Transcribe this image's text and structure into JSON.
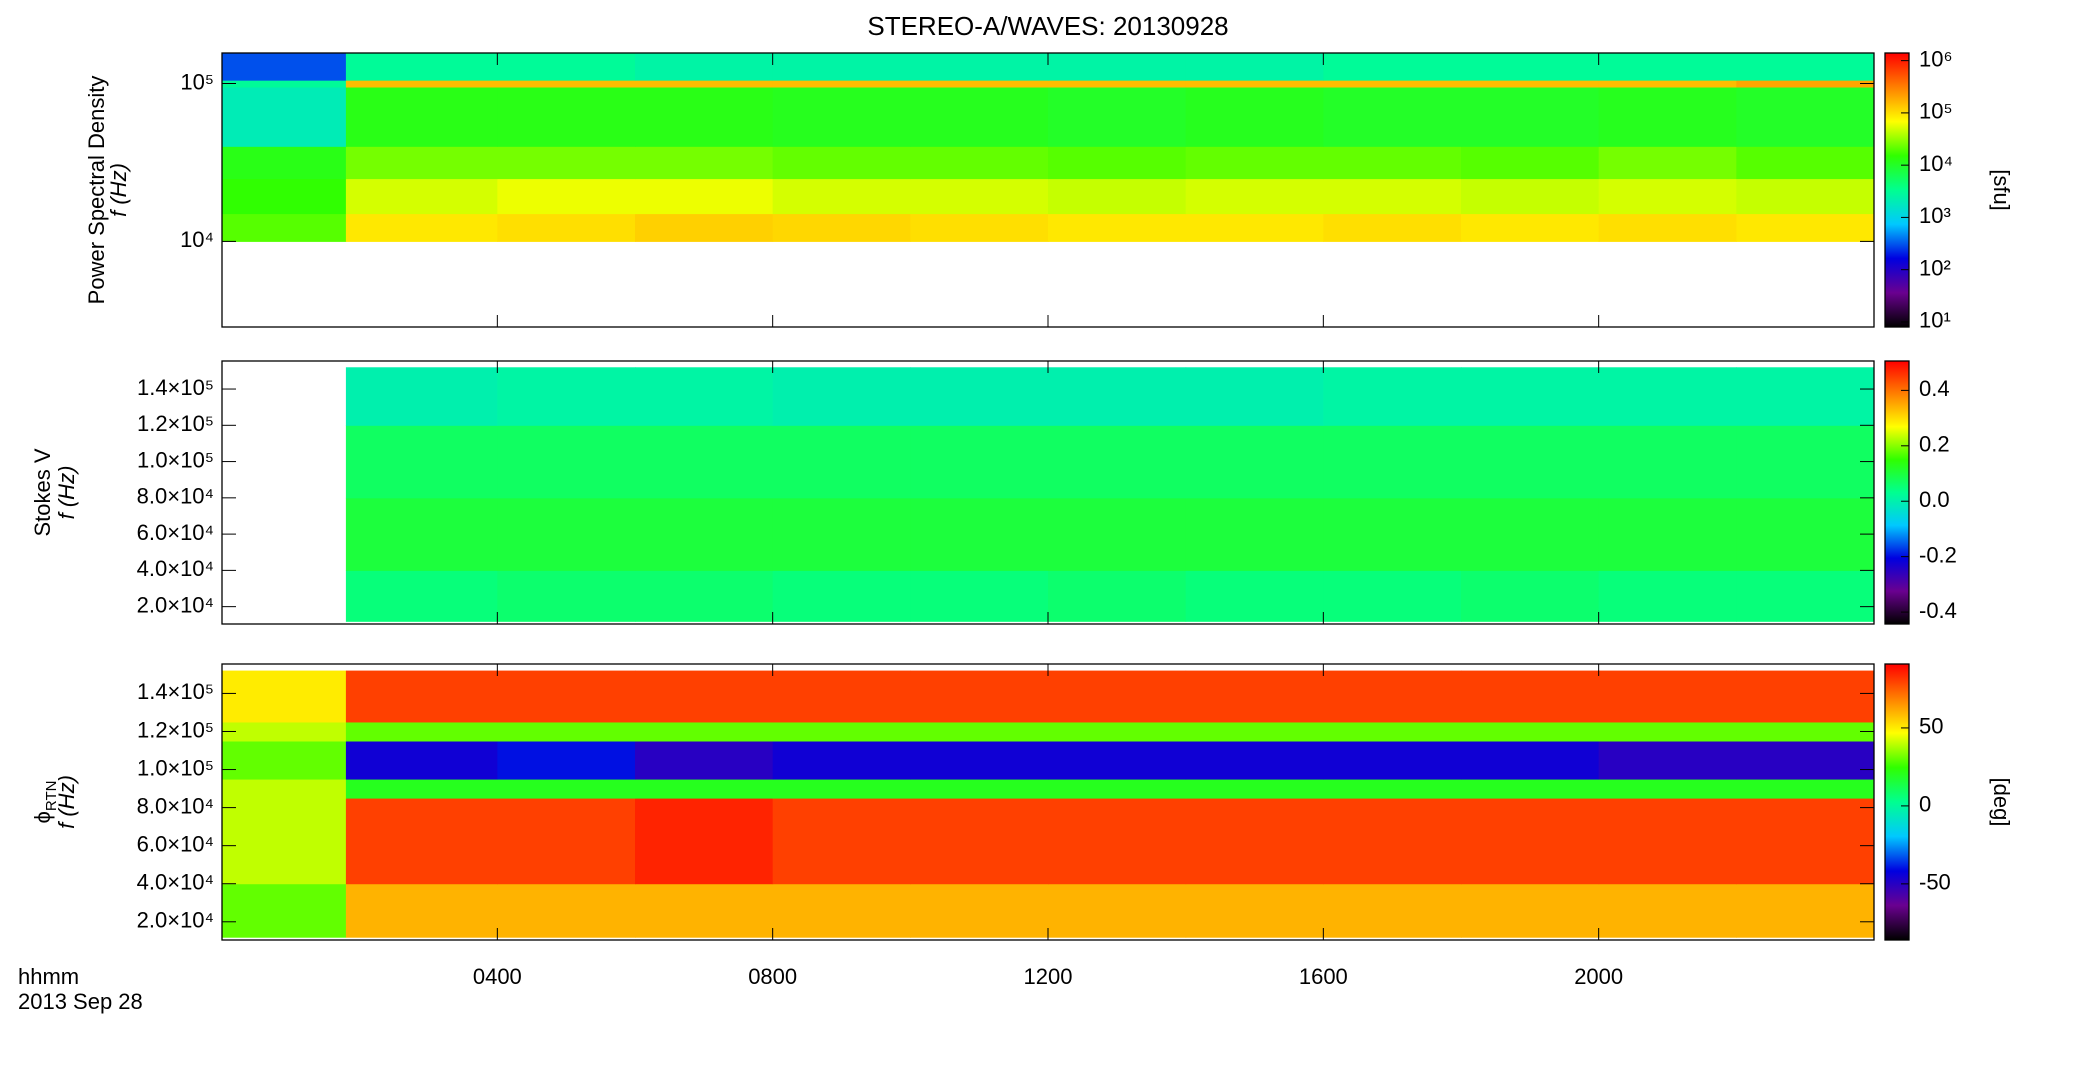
{
  "title": "STEREO-A/WAVES: 20130928",
  "xlabel": "hhmm",
  "date": "2013 Sep 28",
  "chart_data": [
    {
      "type": "heatmap",
      "quantity": "Power Spectral Density",
      "ylabel": "f (Hz)",
      "ylog": true,
      "clog": true,
      "clabel": "[sfu]",
      "xlim": [
        0,
        24
      ],
      "xticks": [
        4,
        8,
        12,
        16,
        20
      ],
      "ylim": [
        2870,
        156000
      ],
      "yticks": [
        {
          "value": 10000,
          "label": "10⁴"
        },
        {
          "value": 100000,
          "label": "10⁵"
        }
      ],
      "clim": [
        8,
        1400000
      ],
      "cticks": [
        {
          "value": 10,
          "label": "10¹"
        },
        {
          "value": 100,
          "label": "10²"
        },
        {
          "value": 1000,
          "label": "10³"
        },
        {
          "value": 10000,
          "label": "10⁴"
        },
        {
          "value": 100000,
          "label": "10⁵"
        },
        {
          "value": 1000000,
          "label": "10⁶"
        }
      ],
      "colormap": [
        "#000000",
        "#6a0090",
        "#0000e0",
        "#00c8ff",
        "#00ff90",
        "#30ff00",
        "#ffff00",
        "#ff8000",
        "#ff0000"
      ],
      "x_edges": [
        0,
        1.8,
        4,
        6,
        8,
        10,
        12,
        14,
        16,
        18,
        20,
        22,
        24
      ],
      "y_edges": [
        10000,
        15000,
        25000,
        40000,
        95000,
        105000,
        156000
      ],
      "values": [
        [
          20000,
          90000,
          100000,
          120000,
          110000,
          100000,
          90000,
          90000,
          100000,
          90000,
          100000,
          90000
        ],
        [
          15000,
          50000,
          60000,
          60000,
          50000,
          50000,
          45000,
          50000,
          50000,
          45000,
          50000,
          45000
        ],
        [
          12000,
          25000,
          25000,
          25000,
          22000,
          22000,
          20000,
          22000,
          22000,
          20000,
          25000,
          20000
        ],
        [
          2000,
          12000,
          12000,
          12000,
          11000,
          11000,
          10000,
          11000,
          10000,
          10000,
          11000,
          10000
        ],
        [
          3000,
          150000,
          150000,
          150000,
          150000,
          150000,
          150000,
          150000,
          150000,
          150000,
          150000,
          200000
        ],
        [
          300,
          3000,
          3000,
          2500,
          2500,
          2500,
          2500,
          2500,
          3000,
          3000,
          3000,
          3000
        ]
      ]
    },
    {
      "type": "heatmap",
      "quantity": "Stokes V",
      "ylabel": "f (Hz)",
      "ylog": false,
      "clog": false,
      "xlim": [
        0,
        24
      ],
      "xticks": [
        4,
        8,
        12,
        16,
        20
      ],
      "ylim": [
        10430,
        155460
      ],
      "yticks": [
        {
          "value": 20000,
          "label": "2.0×10⁴"
        },
        {
          "value": 40000,
          "label": "4.0×10⁴"
        },
        {
          "value": 60000,
          "label": "6.0×10⁴"
        },
        {
          "value": 80000,
          "label": "8.0×10⁴"
        },
        {
          "value": 100000,
          "label": "1.0×10⁵"
        },
        {
          "value": 120000,
          "label": "1.2×10⁵"
        },
        {
          "value": 140000,
          "label": "1.4×10⁵"
        }
      ],
      "clim": [
        -0.443,
        0.506
      ],
      "cticks": [
        -0.4,
        -0.2,
        {
          "value": 0,
          "label": "0.0"
        },
        0.2,
        0.4
      ],
      "colormap": [
        "#000000",
        "#6a0090",
        "#0000e0",
        "#00c8ff",
        "#00ff90",
        "#30ff00",
        "#ffff00",
        "#ff8000",
        "#ff0000"
      ],
      "x_edges": [
        0,
        1.8,
        4,
        6,
        8,
        10,
        12,
        14,
        16,
        18,
        20,
        22,
        24
      ],
      "y_edges": [
        11900,
        40000,
        80000,
        120000,
        152000
      ],
      "values": [
        [
          null,
          0.05,
          0.06,
          0.06,
          0.05,
          0.05,
          0.06,
          0.05,
          0.05,
          0.06,
          0.05,
          0.05
        ],
        [
          null,
          0.1,
          0.1,
          0.1,
          0.1,
          0.1,
          0.1,
          0.1,
          0.1,
          0.1,
          0.1,
          0.1
        ],
        [
          null,
          0.07,
          0.07,
          0.07,
          0.07,
          0.07,
          0.07,
          0.07,
          0.07,
          0.07,
          0.07,
          0.07
        ],
        [
          null,
          0.0,
          0.01,
          0.01,
          0.0,
          0.0,
          0.0,
          0.0,
          0.01,
          0.01,
          0.01,
          0.01
        ]
      ]
    },
    {
      "type": "heatmap",
      "quantity": "ϕ",
      "quantity_sub": "RTN",
      "ylabel": "f (Hz)",
      "ylog": false,
      "clog": false,
      "clabel": "[deg]",
      "xlim": [
        0,
        24
      ],
      "xticks": [
        {
          "value": 4,
          "label": "0400"
        },
        {
          "value": 8,
          "label": "0800"
        },
        {
          "value": 12,
          "label": "1200"
        },
        {
          "value": 16,
          "label": "1600"
        },
        {
          "value": 20,
          "label": "2000"
        }
      ],
      "ylim": [
        10430,
        155460
      ],
      "yticks": [
        {
          "value": 20000,
          "label": "2.0×10⁴"
        },
        {
          "value": 40000,
          "label": "4.0×10⁴"
        },
        {
          "value": 60000,
          "label": "6.0×10⁴"
        },
        {
          "value": 80000,
          "label": "8.0×10⁴"
        },
        {
          "value": 100000,
          "label": "1.0×10⁵"
        },
        {
          "value": 120000,
          "label": "1.2×10⁵"
        },
        {
          "value": 140000,
          "label": "1.4×10⁵"
        }
      ],
      "clim": [
        -86,
        91
      ],
      "cticks": [
        -50,
        0,
        50
      ],
      "colormap": [
        "#000000",
        "#6a0090",
        "#0000e0",
        "#00c8ff",
        "#00ff90",
        "#30ff00",
        "#ffff00",
        "#ff8000",
        "#ff0000"
      ],
      "x_edges": [
        0,
        1.8,
        4,
        6,
        8,
        10,
        12,
        14,
        16,
        18,
        20,
        22,
        24
      ],
      "y_edges": [
        11900,
        40000,
        85000,
        95000,
        115000,
        125000,
        152000
      ],
      "values": [
        [
          30,
          60,
          60,
          60,
          60,
          60,
          60,
          60,
          60,
          60,
          60,
          60
        ],
        [
          40,
          80,
          80,
          85,
          80,
          80,
          80,
          80,
          80,
          80,
          80,
          80
        ],
        [
          40,
          20,
          20,
          20,
          20,
          20,
          20,
          20,
          20,
          20,
          20,
          20
        ],
        [
          30,
          -45,
          -40,
          -50,
          -45,
          -45,
          -45,
          -45,
          -45,
          -45,
          -50,
          -50
        ],
        [
          40,
          30,
          30,
          30,
          30,
          30,
          30,
          30,
          30,
          30,
          30,
          30
        ],
        [
          50,
          80,
          80,
          80,
          80,
          80,
          80,
          80,
          80,
          80,
          80,
          80
        ]
      ]
    }
  ]
}
